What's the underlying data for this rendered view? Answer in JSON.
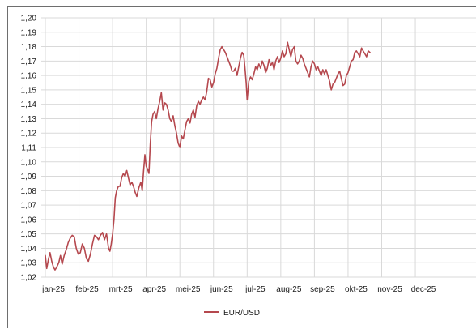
{
  "chart_data": {
    "type": "line",
    "title": "",
    "xlabel": "",
    "ylabel": "",
    "ylim": [
      1.02,
      1.2
    ],
    "yticks": [
      1.02,
      1.03,
      1.04,
      1.05,
      1.06,
      1.07,
      1.08,
      1.09,
      1.1,
      1.11,
      1.12,
      1.13,
      1.14,
      1.15,
      1.16,
      1.17,
      1.18,
      1.19,
      1.2
    ],
    "ytick_labels": [
      "1,02",
      "1,03",
      "1,04",
      "1,05",
      "1,06",
      "1,07",
      "1,08",
      "1,09",
      "1,10",
      "1,11",
      "1,12",
      "1,13",
      "1,14",
      "1,15",
      "1,16",
      "1,17",
      "1,18",
      "1,19",
      "1,20"
    ],
    "xtick_labels": [
      "jan-25",
      "feb-25",
      "mrt-25",
      "apr-25",
      "mei-25",
      "jun-25",
      "jul-25",
      "aug-25",
      "sep-25",
      "okt-25",
      "nov-25",
      "dec-25"
    ],
    "grid": true,
    "legend_position": "bottom-center",
    "series": [
      {
        "name": "EUR/USD",
        "color": "#b5484e",
        "x_unit": "month index (0 = jan-25)",
        "points": [
          [
            0.0,
            1.035
          ],
          [
            0.04,
            1.026
          ],
          [
            0.09,
            1.032
          ],
          [
            0.14,
            1.037
          ],
          [
            0.19,
            1.031
          ],
          [
            0.24,
            1.027
          ],
          [
            0.29,
            1.025
          ],
          [
            0.34,
            1.027
          ],
          [
            0.4,
            1.03
          ],
          [
            0.45,
            1.035
          ],
          [
            0.5,
            1.029
          ],
          [
            0.56,
            1.035
          ],
          [
            0.62,
            1.039
          ],
          [
            0.68,
            1.044
          ],
          [
            0.74,
            1.047
          ],
          [
            0.8,
            1.049
          ],
          [
            0.86,
            1.048
          ],
          [
            0.92,
            1.04
          ],
          [
            0.98,
            1.036
          ],
          [
            1.04,
            1.037
          ],
          [
            1.1,
            1.043
          ],
          [
            1.16,
            1.04
          ],
          [
            1.22,
            1.033
          ],
          [
            1.28,
            1.031
          ],
          [
            1.34,
            1.036
          ],
          [
            1.4,
            1.043
          ],
          [
            1.46,
            1.049
          ],
          [
            1.52,
            1.048
          ],
          [
            1.58,
            1.046
          ],
          [
            1.64,
            1.049
          ],
          [
            1.7,
            1.051
          ],
          [
            1.76,
            1.046
          ],
          [
            1.82,
            1.05
          ],
          [
            1.88,
            1.04
          ],
          [
            1.92,
            1.038
          ],
          [
            1.96,
            1.043
          ],
          [
            2.0,
            1.05
          ],
          [
            2.04,
            1.06
          ],
          [
            2.08,
            1.075
          ],
          [
            2.12,
            1.08
          ],
          [
            2.17,
            1.083
          ],
          [
            2.22,
            1.083
          ],
          [
            2.27,
            1.089
          ],
          [
            2.32,
            1.092
          ],
          [
            2.37,
            1.09
          ],
          [
            2.42,
            1.094
          ],
          [
            2.47,
            1.089
          ],
          [
            2.52,
            1.084
          ],
          [
            2.57,
            1.086
          ],
          [
            2.62,
            1.083
          ],
          [
            2.67,
            1.079
          ],
          [
            2.72,
            1.076
          ],
          [
            2.78,
            1.082
          ],
          [
            2.84,
            1.086
          ],
          [
            2.88,
            1.08
          ],
          [
            2.92,
            1.093
          ],
          [
            2.96,
            1.105
          ],
          [
            3.0,
            1.097
          ],
          [
            3.04,
            1.095
          ],
          [
            3.08,
            1.092
          ],
          [
            3.12,
            1.112
          ],
          [
            3.16,
            1.128
          ],
          [
            3.2,
            1.133
          ],
          [
            3.25,
            1.135
          ],
          [
            3.3,
            1.13
          ],
          [
            3.35,
            1.137
          ],
          [
            3.4,
            1.142
          ],
          [
            3.45,
            1.148
          ],
          [
            3.5,
            1.136
          ],
          [
            3.55,
            1.141
          ],
          [
            3.6,
            1.14
          ],
          [
            3.65,
            1.136
          ],
          [
            3.7,
            1.13
          ],
          [
            3.75,
            1.128
          ],
          [
            3.8,
            1.132
          ],
          [
            3.85,
            1.125
          ],
          [
            3.9,
            1.12
          ],
          [
            3.95,
            1.113
          ],
          [
            4.0,
            1.11
          ],
          [
            4.05,
            1.118
          ],
          [
            4.1,
            1.116
          ],
          [
            4.15,
            1.122
          ],
          [
            4.2,
            1.128
          ],
          [
            4.25,
            1.13
          ],
          [
            4.3,
            1.127
          ],
          [
            4.35,
            1.133
          ],
          [
            4.4,
            1.136
          ],
          [
            4.45,
            1.131
          ],
          [
            4.5,
            1.139
          ],
          [
            4.55,
            1.142
          ],
          [
            4.6,
            1.14
          ],
          [
            4.65,
            1.143
          ],
          [
            4.7,
            1.145
          ],
          [
            4.75,
            1.143
          ],
          [
            4.8,
            1.149
          ],
          [
            4.85,
            1.158
          ],
          [
            4.9,
            1.157
          ],
          [
            4.95,
            1.152
          ],
          [
            5.0,
            1.155
          ],
          [
            5.05,
            1.161
          ],
          [
            5.1,
            1.165
          ],
          [
            5.15,
            1.172
          ],
          [
            5.2,
            1.178
          ],
          [
            5.25,
            1.18
          ],
          [
            5.3,
            1.178
          ],
          [
            5.35,
            1.176
          ],
          [
            5.4,
            1.173
          ],
          [
            5.45,
            1.17
          ],
          [
            5.5,
            1.167
          ],
          [
            5.55,
            1.163
          ],
          [
            5.6,
            1.163
          ],
          [
            5.65,
            1.165
          ],
          [
            5.7,
            1.16
          ],
          [
            5.75,
            1.166
          ],
          [
            5.8,
            1.172
          ],
          [
            5.85,
            1.176
          ],
          [
            5.9,
            1.174
          ],
          [
            5.94,
            1.164
          ],
          [
            5.97,
            1.155
          ],
          [
            6.0,
            1.143
          ],
          [
            6.05,
            1.156
          ],
          [
            6.1,
            1.159
          ],
          [
            6.15,
            1.157
          ],
          [
            6.2,
            1.161
          ],
          [
            6.25,
            1.166
          ],
          [
            6.3,
            1.164
          ],
          [
            6.35,
            1.168
          ],
          [
            6.4,
            1.165
          ],
          [
            6.45,
            1.17
          ],
          [
            6.5,
            1.167
          ],
          [
            6.55,
            1.162
          ],
          [
            6.6,
            1.165
          ],
          [
            6.65,
            1.171
          ],
          [
            6.7,
            1.167
          ],
          [
            6.75,
            1.169
          ],
          [
            6.8,
            1.164
          ],
          [
            6.85,
            1.17
          ],
          [
            6.9,
            1.173
          ],
          [
            6.95,
            1.169
          ],
          [
            7.0,
            1.172
          ],
          [
            7.05,
            1.177
          ],
          [
            7.1,
            1.173
          ],
          [
            7.15,
            1.175
          ],
          [
            7.2,
            1.183
          ],
          [
            7.25,
            1.178
          ],
          [
            7.3,
            1.173
          ],
          [
            7.35,
            1.178
          ],
          [
            7.4,
            1.18
          ],
          [
            7.45,
            1.17
          ],
          [
            7.5,
            1.168
          ],
          [
            7.55,
            1.17
          ],
          [
            7.6,
            1.174
          ],
          [
            7.65,
            1.172
          ],
          [
            7.7,
            1.168
          ],
          [
            7.75,
            1.165
          ],
          [
            7.8,
            1.162
          ],
          [
            7.85,
            1.159
          ],
          [
            7.9,
            1.166
          ],
          [
            7.95,
            1.17
          ],
          [
            8.0,
            1.168
          ],
          [
            8.05,
            1.164
          ],
          [
            8.1,
            1.166
          ],
          [
            8.15,
            1.163
          ],
          [
            8.2,
            1.16
          ],
          [
            8.25,
            1.164
          ],
          [
            8.3,
            1.161
          ],
          [
            8.35,
            1.164
          ],
          [
            8.4,
            1.16
          ],
          [
            8.45,
            1.156
          ],
          [
            8.5,
            1.15
          ],
          [
            8.55,
            1.154
          ],
          [
            8.6,
            1.155
          ],
          [
            8.65,
            1.158
          ],
          [
            8.7,
            1.161
          ],
          [
            8.75,
            1.163
          ],
          [
            8.8,
            1.158
          ],
          [
            8.85,
            1.153
          ],
          [
            8.9,
            1.154
          ],
          [
            8.95,
            1.16
          ],
          [
            9.0,
            1.162
          ],
          [
            9.05,
            1.166
          ],
          [
            9.1,
            1.17
          ],
          [
            9.15,
            1.171
          ],
          [
            9.2,
            1.176
          ],
          [
            9.25,
            1.177
          ],
          [
            9.3,
            1.175
          ],
          [
            9.35,
            1.173
          ],
          [
            9.4,
            1.179
          ],
          [
            9.45,
            1.177
          ],
          [
            9.5,
            1.175
          ],
          [
            9.55,
            1.173
          ],
          [
            9.6,
            1.177
          ],
          [
            9.65,
            1.176
          ]
        ]
      }
    ]
  },
  "legend": {
    "label": "EUR/USD"
  }
}
